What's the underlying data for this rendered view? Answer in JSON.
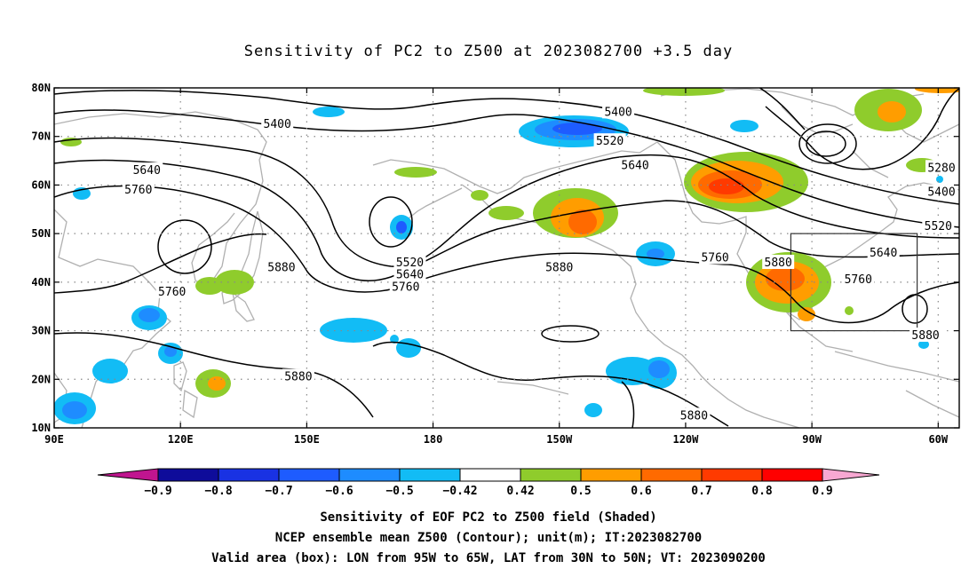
{
  "title": "Sensitivity of PC2 to Z500 at 2023082700 +3.5 day",
  "map": {
    "lon_range": [
      90,
      305
    ],
    "lat_range": [
      10,
      80
    ],
    "x_ticks": [
      {
        "lon": 90,
        "label": "90E"
      },
      {
        "lon": 120,
        "label": "120E"
      },
      {
        "lon": 150,
        "label": "150E"
      },
      {
        "lon": 180,
        "label": "180"
      },
      {
        "lon": 210,
        "label": "150W"
      },
      {
        "lon": 240,
        "label": "120W"
      },
      {
        "lon": 270,
        "label": "90W"
      },
      {
        "lon": 300,
        "label": "60W"
      }
    ],
    "y_ticks": [
      {
        "lat": 10,
        "label": "10N"
      },
      {
        "lat": 20,
        "label": "20N"
      },
      {
        "lat": 30,
        "label": "30N"
      },
      {
        "lat": 40,
        "label": "40N"
      },
      {
        "lat": 50,
        "label": "50N"
      },
      {
        "lat": 60,
        "label": "60N"
      },
      {
        "lat": 70,
        "label": "70N"
      },
      {
        "lat": 80,
        "label": "80N"
      }
    ],
    "grid": "dotted",
    "valid_box": {
      "lon_min": 265,
      "lon_max": 295,
      "lat_min": 30,
      "lat_max": 50
    },
    "contour_labels": [
      {
        "text": "5400",
        "lon": 143,
        "lat": 72.5
      },
      {
        "text": "5640",
        "lon": 112,
        "lat": 63
      },
      {
        "text": "5760",
        "lon": 110,
        "lat": 59
      },
      {
        "text": "5880",
        "lon": 144,
        "lat": 43
      },
      {
        "text": "5760",
        "lon": 118,
        "lat": 38
      },
      {
        "text": "5880",
        "lon": 148,
        "lat": 20.5
      },
      {
        "text": "5400",
        "lon": 224,
        "lat": 75
      },
      {
        "text": "5520",
        "lon": 222,
        "lat": 69
      },
      {
        "text": "5640",
        "lon": 228,
        "lat": 64
      },
      {
        "text": "5520",
        "lon": 174.5,
        "lat": 44
      },
      {
        "text": "5640",
        "lon": 174.5,
        "lat": 41.5
      },
      {
        "text": "5760",
        "lon": 173.5,
        "lat": 39
      },
      {
        "text": "5880",
        "lon": 210,
        "lat": 43
      },
      {
        "text": "5760",
        "lon": 247,
        "lat": 45
      },
      {
        "text": "5880",
        "lon": 262,
        "lat": 44
      },
      {
        "text": "5880",
        "lon": 242,
        "lat": 12.5
      },
      {
        "text": "5280",
        "lon": 308,
        "lat": 63.5
      },
      {
        "text": "5400",
        "lon": 304,
        "lat": 58.5
      },
      {
        "text": "5520",
        "lon": 300,
        "lat": 51.5
      },
      {
        "text": "5640",
        "lon": 287,
        "lat": 46
      },
      {
        "text": "5760",
        "lon": 281,
        "lat": 40.5
      },
      {
        "text": "5880",
        "lon": 297,
        "lat": 29
      }
    ]
  },
  "colorbar": {
    "labels": [
      "−0.9",
      "−0.8",
      "−0.7",
      "−0.6",
      "−0.5",
      "−0.42",
      "0.42",
      "0.5",
      "0.6",
      "0.7",
      "0.8",
      "0.9"
    ],
    "low_extend_color": "#c0158f",
    "high_extend_color": "#f7a8d2",
    "colors": [
      "#0e0c9a",
      "#1932e3",
      "#1e5cff",
      "#1e8cff",
      "#12bcf5",
      "#ffffff",
      "#8fcc2c",
      "#ff9d00",
      "#ff6a00",
      "#ff3a00",
      "#ff0000"
    ]
  },
  "captions": {
    "line1": "Sensitivity of EOF PC2 to Z500 field (Shaded)",
    "line2": "NCEP ensemble mean Z500 (Contour); unit(m); IT:2023082700",
    "line3": "Valid area (box): LON from 95W to 65W, LAT from 30N to 50N; VT: 2023090200"
  }
}
